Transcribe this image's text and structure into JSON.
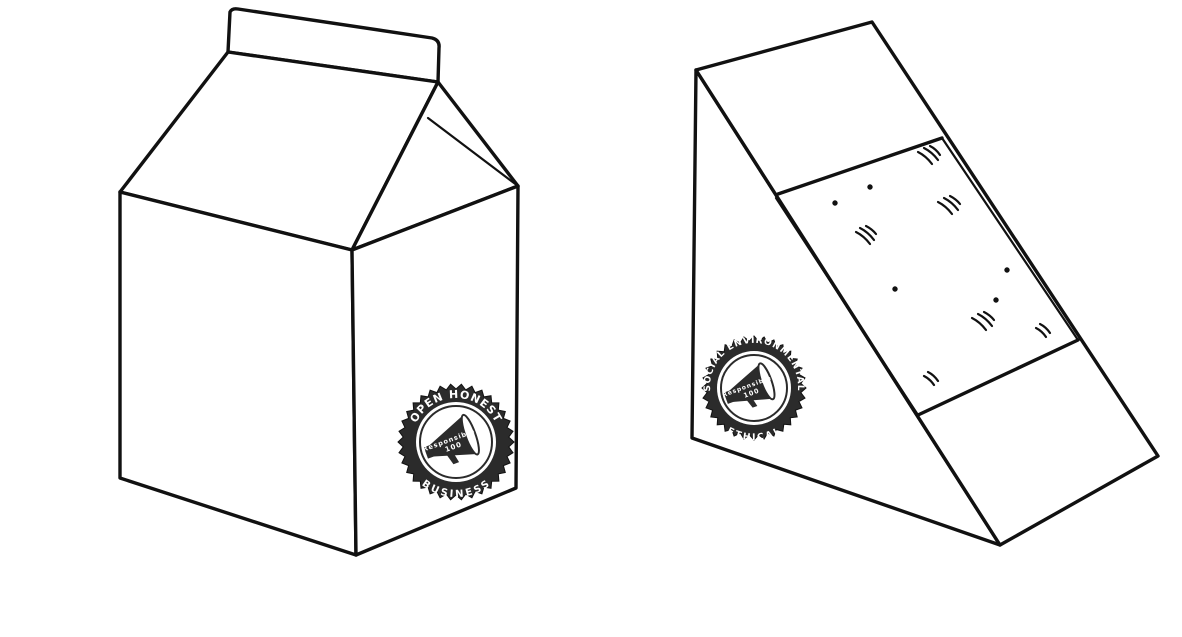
{
  "scene": {
    "milk_carton": {
      "badge": {
        "top_text": "OPEN HONEST",
        "bottom_text": "BUSINESS",
        "center_brand": "Responsible",
        "center_number": "100"
      }
    },
    "sandwich_box": {
      "badge": {
        "top_text": "SOCIAL ENVIRONMENTAL",
        "bottom_text": "ETHICAL",
        "center_brand": "Responsible",
        "center_number": "100"
      }
    }
  },
  "colors": {
    "ink": "#111111",
    "badge_fill": "#2b2b2b",
    "background": "#ffffff"
  }
}
